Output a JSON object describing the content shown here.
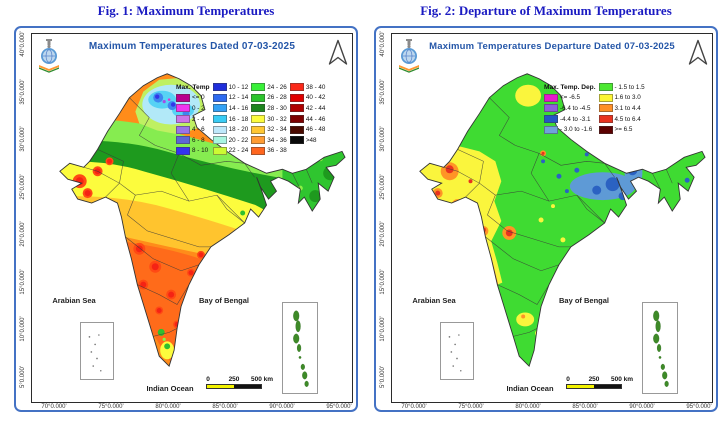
{
  "theme": {
    "frame_color": "#4472C4",
    "caption_color": "#1B1BC2",
    "title_color": "#2456A8"
  },
  "figures": [
    {
      "caption": "Fig. 1: Maximum Temperatures",
      "title": "Maximum Temperatures  Dated 07-03-2025",
      "legend": {
        "header": "Max. Temp",
        "columns": [
          [
            {
              "label": "<= 0",
              "color": "#B8008F"
            },
            {
              "label": "0 - 2",
              "color": "#F033F0"
            },
            {
              "label": "2 - 4",
              "color": "#CC73E8"
            },
            {
              "label": "4 - 6",
              "color": "#9973E8"
            },
            {
              "label": "6 - 8",
              "color": "#5C66D6"
            },
            {
              "label": "8 - 10",
              "color": "#3333F0"
            }
          ],
          [
            {
              "label": "10 - 12",
              "color": "#1F2EDB"
            },
            {
              "label": "12 - 14",
              "color": "#2E6BF0"
            },
            {
              "label": "14 - 16",
              "color": "#33A1F5"
            },
            {
              "label": "16 - 18",
              "color": "#38CCF5"
            },
            {
              "label": "18 - 20",
              "color": "#BEE8FA"
            },
            {
              "label": "20 - 22",
              "color": "#A8F5E0"
            },
            {
              "label": "22 - 24",
              "color": "#CCFA33"
            }
          ],
          [
            {
              "label": "24 - 26",
              "color": "#38F038"
            },
            {
              "label": "26 - 28",
              "color": "#2CC42C"
            },
            {
              "label": "28 - 30",
              "color": "#1E851E"
            },
            {
              "label": "30 - 32",
              "color": "#FCFC3D"
            },
            {
              "label": "32 - 34",
              "color": "#FFC733"
            },
            {
              "label": "34 - 36",
              "color": "#FF9C33"
            },
            {
              "label": "36 - 38",
              "color": "#FF661F"
            }
          ],
          [
            {
              "label": "38 - 40",
              "color": "#FA2819"
            },
            {
              "label": "40 - 42",
              "color": "#E00000"
            },
            {
              "label": "42 - 44",
              "color": "#B00000"
            },
            {
              "label": "44 - 46",
              "color": "#7D0000"
            },
            {
              "label": "46 - 48",
              "color": "#4A0A00"
            },
            {
              "label": ">48",
              "color": "#0A0A0A"
            }
          ]
        ]
      }
    },
    {
      "caption": "Fig. 2: Departure of Maximum Temperatures",
      "title": "Maximum Temperatures Departure Dated 07-03-2025",
      "legend": {
        "header": "Max. Temp. Dep.",
        "columns": [
          [
            {
              "label": "<= -6.5",
              "color": "#E619CC"
            },
            {
              "label": "-6.4 to -4.5",
              "color": "#8F5CD9"
            },
            {
              "label": "-4.4 to -3.1",
              "color": "#2357C4"
            },
            {
              "label": "- 3.0 to -1.6",
              "color": "#6FA3DB"
            }
          ],
          [
            {
              "label": "- 1.5 to 1.5",
              "color": "#4CE832"
            },
            {
              "label": "1.6 to  3.0",
              "color": "#FCF533"
            },
            {
              "label": "3.1 to 4.4",
              "color": "#FF8F26"
            },
            {
              "label": "4.5 to 6.4",
              "color": "#E8321F"
            },
            {
              "label": ">= 6.5",
              "color": "#5C0000"
            }
          ]
        ]
      }
    }
  ],
  "axes": {
    "latitudes": [
      "40°0.000'",
      "35°0.000'",
      "30°0.000'",
      "25°0.000'",
      "20°0.000'",
      "15°0.000'",
      "10°0.000'",
      "5°0.000'"
    ],
    "longitudes": [
      "70°0.000'",
      "75°0.000'",
      "80°0.000'",
      "85°0.000'",
      "90°0.000'",
      "95°0.000'"
    ]
  },
  "labels": {
    "arabian_sea": "Arabian Sea",
    "bay_of_bengal": "Bay of Bengal",
    "indian_ocean": "Indian Ocean"
  },
  "scalebar": {
    "ticks": [
      "0",
      "250",
      "500 km"
    ]
  }
}
